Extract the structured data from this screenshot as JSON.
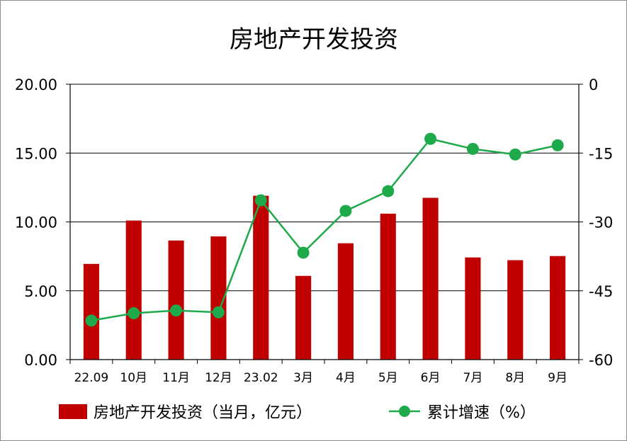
{
  "chart_data": {
    "type": "bar+line",
    "title": "房地产开发投资",
    "categories": [
      "22.09",
      "10月",
      "11月",
      "12月",
      "23.02",
      "3月",
      "4月",
      "5月",
      "6月",
      "7月",
      "8月",
      "9月"
    ],
    "series": [
      {
        "name": "房地产开发投资（当月，亿元）",
        "type": "bar",
        "axis": "left",
        "color": "#C00000",
        "values": [
          6.95,
          10.1,
          8.65,
          8.95,
          11.9,
          6.08,
          8.45,
          10.6,
          11.75,
          7.42,
          7.22,
          7.52
        ]
      },
      {
        "name": "累计增速（%）",
        "type": "line",
        "axis": "right",
        "color": "#1EAA4B",
        "values": [
          -51.5,
          -49.9,
          -49.3,
          -49.7,
          -25.3,
          -36.7,
          -27.6,
          -23.3,
          -11.9,
          -14.1,
          -15.3,
          -13.3
        ]
      }
    ],
    "y_left": {
      "min": 0,
      "max": 20,
      "step": 5,
      "tick_labels": [
        "0.00",
        "5.00",
        "10.00",
        "15.00",
        "20.00"
      ]
    },
    "y_right": {
      "min": -60,
      "max": 0,
      "step": 15,
      "tick_labels": [
        "-60",
        "-45",
        "-30",
        "-15",
        "0"
      ]
    },
    "grid": "horizontal",
    "legend_position": "bottom"
  }
}
